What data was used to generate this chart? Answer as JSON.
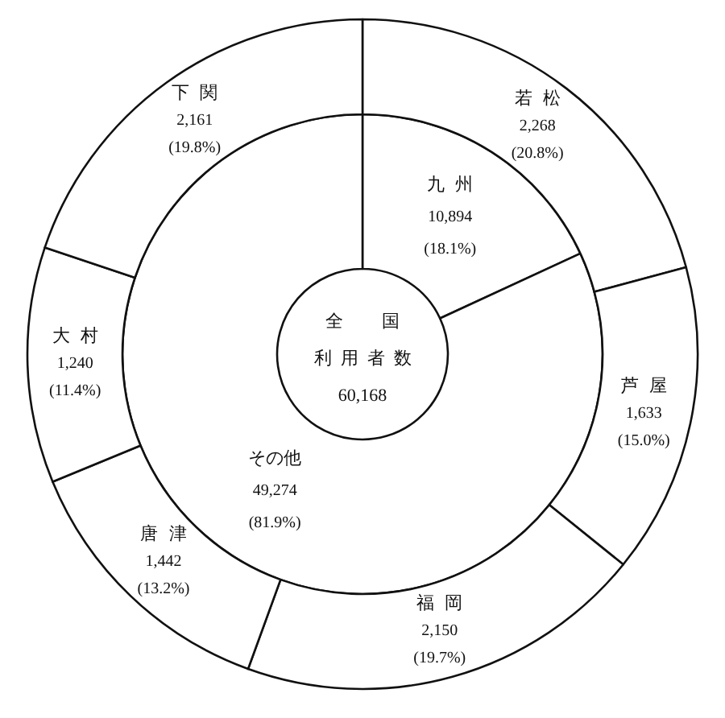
{
  "chart_data": [
    {
      "type": "donut",
      "categories": [
        "九州",
        "その他"
      ],
      "values": [
        10894,
        49274
      ],
      "value_labels": [
        "10,894\n(18.1%)",
        "49,274\n(81.9%)"
      ],
      "colors": [
        "#ffffff",
        "#ffffff"
      ],
      "annotations": [
        "全国",
        "利用者数",
        "60,168"
      ]
    },
    {
      "type": "donut",
      "categories": [
        "若松",
        "芦屋",
        "福岡",
        "唐津",
        "大村",
        "下関"
      ],
      "values": [
        2268,
        1633,
        2150,
        1442,
        1240,
        2161
      ],
      "value_labels": [
        "2,268\n(20.8%)",
        "1,633\n(15.0%)",
        "2,150\n(19.7%)",
        "1,442\n(13.2%)",
        "1,240\n(11.4%)",
        "2,161\n(19.8%)"
      ],
      "colors": [
        "#ffffff",
        "#ffffff",
        "#ffffff",
        "#ffffff",
        "#ffffff",
        "#ffffff"
      ]
    }
  ]
}
